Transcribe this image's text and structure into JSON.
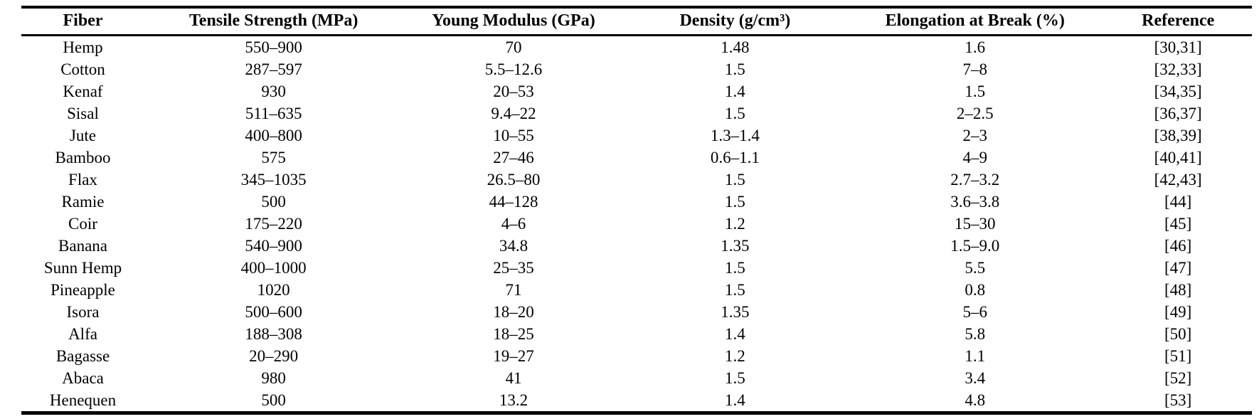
{
  "page": {
    "background_color": "#ffffff",
    "text_color": "#000000",
    "rule_color": "#000000"
  },
  "table": {
    "columns": [
      {
        "key": "fiber",
        "label": "Fiber"
      },
      {
        "key": "tensile_strength_mpa",
        "label": "Tensile Strength (MPa)"
      },
      {
        "key": "young_modulus_gpa",
        "label": "Young Modulus (GPa)"
      },
      {
        "key": "density_g_cm3",
        "label": "Density (g/cm³)"
      },
      {
        "key": "elongation_at_break_pct",
        "label": "Elongation at Break (%)"
      },
      {
        "key": "reference",
        "label": "Reference"
      }
    ],
    "rows": [
      {
        "cells": [
          "Hemp",
          "550–900",
          "70",
          "1.48",
          "1.6",
          "[30,31]"
        ]
      },
      {
        "cells": [
          "Cotton",
          "287–597",
          "5.5–12.6",
          "1.5",
          "7–8",
          "[32,33]"
        ]
      },
      {
        "cells": [
          "Kenaf",
          "930",
          "20–53",
          "1.4",
          "1.5",
          "[34,35]"
        ]
      },
      {
        "cells": [
          "Sisal",
          "511–635",
          "9.4–22",
          "1.5",
          "2–2.5",
          "[36,37]"
        ]
      },
      {
        "cells": [
          "Jute",
          "400–800",
          "10–55",
          "1.3–1.4",
          "2–3",
          "[38,39]"
        ]
      },
      {
        "cells": [
          "Bamboo",
          "575",
          "27–46",
          "0.6–1.1",
          "4–9",
          "[40,41]"
        ]
      },
      {
        "cells": [
          "Flax",
          "345–1035",
          "26.5–80",
          "1.5",
          "2.7–3.2",
          "[42,43]"
        ]
      },
      {
        "cells": [
          "Ramie",
          "500",
          "44–128",
          "1.5",
          "3.6–3.8",
          "[44]"
        ]
      },
      {
        "cells": [
          "Coir",
          "175–220",
          "4–6",
          "1.2",
          "15–30",
          "[45]"
        ]
      },
      {
        "cells": [
          "Banana",
          "540–900",
          "34.8",
          "1.35",
          "1.5–9.0",
          "[46]"
        ]
      },
      {
        "cells": [
          "Sunn Hemp",
          "400–1000",
          "25–35",
          "1.5",
          "5.5",
          "[47]"
        ]
      },
      {
        "cells": [
          "Pineapple",
          "1020",
          "71",
          "1.5",
          "0.8",
          "[48]"
        ]
      },
      {
        "cells": [
          "Isora",
          "500–600",
          "18–20",
          "1.35",
          "5–6",
          "[49]"
        ]
      },
      {
        "cells": [
          "Alfa",
          "188–308",
          "18–25",
          "1.4",
          "5.8",
          "[50]"
        ]
      },
      {
        "cells": [
          "Bagasse",
          "20–290",
          "19–27",
          "1.2",
          "1.1",
          "[51]"
        ]
      },
      {
        "cells": [
          "Abaca",
          "980",
          "41",
          "1.5",
          "3.4",
          "[52]"
        ]
      },
      {
        "cells": [
          "Henequen",
          "500",
          "13.2",
          "1.4",
          "4.8",
          "[53]"
        ]
      }
    ]
  }
}
